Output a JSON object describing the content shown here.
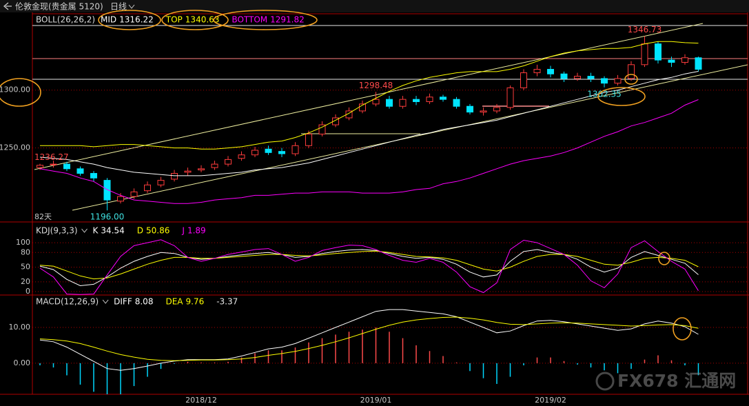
{
  "window": {
    "title": "伦敦金现(贵金属 5120)",
    "period": "日线"
  },
  "watermark": "FX678 汇通网",
  "chart_data": [
    {
      "type": "candlestick",
      "indicator": "BOLL(26,26,2)",
      "period_label": "82天",
      "categories": [
        null,
        null,
        null,
        null,
        null,
        null,
        null,
        null,
        null,
        null,
        null,
        null,
        "2018/12",
        null,
        null,
        null,
        null,
        null,
        null,
        null,
        null,
        null,
        null,
        null,
        null,
        "2019/01",
        null,
        null,
        null,
        null,
        null,
        null,
        null,
        null,
        null,
        null,
        null,
        null,
        "2019/02",
        null,
        null,
        null,
        null,
        null,
        null,
        null,
        null,
        null,
        null,
        null
      ],
      "open": [
        1233,
        1236,
        1236,
        1232,
        1228,
        1222,
        1204,
        1208,
        1213,
        1218,
        1223,
        1229,
        1231,
        1233,
        1236,
        1241,
        1244,
        1249,
        1247,
        1245,
        1252,
        1262,
        1270,
        1276,
        1282,
        1288,
        1292,
        1286,
        1292,
        1290,
        1294,
        1292,
        1286,
        1281,
        1282,
        1285,
        1302,
        1315,
        1318,
        1314,
        1310,
        1312,
        1310,
        1306,
        1310,
        1322,
        1340,
        1326,
        1324,
        1328
      ],
      "high": [
        1236.27,
        1239,
        1238,
        1234,
        1230,
        1224,
        1211,
        1215,
        1221,
        1225,
        1231,
        1233,
        1235,
        1239,
        1243,
        1247,
        1251,
        1252,
        1250,
        1255,
        1265,
        1273,
        1279,
        1285,
        1291,
        1298.48,
        1295,
        1295,
        1295,
        1297,
        1296,
        1294,
        1288,
        1285,
        1288,
        1304,
        1318,
        1322,
        1321,
        1316,
        1315,
        1315,
        1312,
        1313,
        1325,
        1346.73,
        1342,
        1329,
        1331,
        1329
      ],
      "low": [
        1231,
        1233,
        1230,
        1226,
        1221,
        1196,
        1202,
        1206,
        1211,
        1216,
        1221,
        1226,
        1229,
        1231,
        1234,
        1239,
        1242,
        1244,
        1242,
        1243,
        1250,
        1260,
        1268,
        1274,
        1280,
        1286,
        1284,
        1284,
        1287,
        1288,
        1290,
        1284,
        1279,
        1278,
        1280,
        1283,
        1300,
        1312,
        1311,
        1307,
        1308,
        1307,
        1302.35,
        1304,
        1308,
        1320,
        1323,
        1320,
        1322,
        1316
      ],
      "close": [
        1235,
        1236,
        1232,
        1228,
        1224,
        1205,
        1208,
        1212,
        1218,
        1222,
        1228,
        1230,
        1232,
        1236,
        1240,
        1244,
        1248,
        1246,
        1245,
        1252,
        1262,
        1270,
        1276,
        1282,
        1288,
        1292,
        1286,
        1292,
        1290,
        1294,
        1292,
        1286,
        1281,
        1282,
        1285,
        1302,
        1315,
        1318,
        1314,
        1310,
        1312,
        1310,
        1306,
        1310,
        1322,
        1340,
        1326,
        1324,
        1328,
        1318
      ],
      "up_color": "#ff3c3c",
      "down_color": "#00e4ff",
      "series": [
        {
          "name": "MID",
          "color": "#ffffff",
          "values": [
            1242,
            1241,
            1240,
            1238,
            1236,
            1233,
            1231,
            1229,
            1228,
            1227,
            1226,
            1226,
            1226,
            1227,
            1228,
            1229,
            1231,
            1232,
            1233,
            1235,
            1237,
            1240,
            1243,
            1246,
            1249,
            1252,
            1255,
            1258,
            1261,
            1263,
            1266,
            1268,
            1270,
            1272,
            1274,
            1277,
            1280,
            1283,
            1286,
            1289,
            1292,
            1295,
            1298,
            1300,
            1303,
            1306,
            1309,
            1311,
            1314,
            1316.22
          ]
        },
        {
          "name": "TOP",
          "color": "#ffff00",
          "values": [
            1252,
            1252,
            1252,
            1252,
            1251,
            1252,
            1253,
            1253,
            1252,
            1251,
            1250,
            1250,
            1249,
            1249,
            1250,
            1251,
            1253,
            1255,
            1256,
            1259,
            1263,
            1268,
            1274,
            1280,
            1287,
            1293,
            1299,
            1304,
            1308,
            1311,
            1313,
            1315,
            1316,
            1316,
            1316,
            1318,
            1321,
            1325,
            1329,
            1332,
            1334,
            1335,
            1336,
            1336,
            1337,
            1340,
            1342,
            1342,
            1341,
            1340.63
          ]
        },
        {
          "name": "BOTTOM",
          "color": "#ff00ff",
          "values": [
            1232,
            1230,
            1228,
            1224,
            1221,
            1214,
            1209,
            1205,
            1204,
            1203,
            1202,
            1202,
            1203,
            1205,
            1206,
            1207,
            1209,
            1209,
            1210,
            1211,
            1211,
            1212,
            1212,
            1212,
            1211,
            1211,
            1211,
            1212,
            1214,
            1215,
            1219,
            1221,
            1224,
            1228,
            1232,
            1236,
            1239,
            1241,
            1243,
            1246,
            1250,
            1255,
            1260,
            1264,
            1269,
            1272,
            1276,
            1280,
            1287,
            1291.82
          ]
        }
      ],
      "annotations": [
        1236.27,
        {
          "value": 1196,
          "label": "1196.00"
        },
        1298.48,
        1302.35,
        1346.73
      ],
      "ylim": [
        1186,
        1366
      ],
      "yticks": [
        {
          "value": 1300,
          "label": "1300.00"
        },
        {
          "value": 1250,
          "label": "1250.00"
        }
      ],
      "grid": true
    },
    {
      "type": "line",
      "indicator": "KDJ(9,3,3)",
      "series": [
        {
          "name": "K",
          "color": "#ffffff",
          "values": [
            52,
            45,
            25,
            12,
            15,
            30,
            48,
            62,
            72,
            80,
            78,
            70,
            66,
            68,
            72,
            75,
            78,
            80,
            76,
            70,
            72,
            78,
            82,
            85,
            86,
            84,
            78,
            72,
            68,
            70,
            66,
            56,
            40,
            30,
            34,
            62,
            82,
            86,
            80,
            76,
            66,
            50,
            40,
            48,
            70,
            82,
            74,
            66,
            58,
            34.54
          ]
        },
        {
          "name": "D",
          "color": "#ffff00",
          "values": [
            54,
            52,
            42,
            32,
            26,
            28,
            36,
            46,
            56,
            64,
            70,
            70,
            68,
            68,
            70,
            72,
            74,
            76,
            76,
            74,
            73,
            75,
            78,
            80,
            82,
            83,
            80,
            76,
            72,
            71,
            69,
            64,
            55,
            46,
            42,
            50,
            62,
            72,
            76,
            76,
            72,
            64,
            56,
            54,
            60,
            68,
            70,
            68,
            64,
            50.86
          ]
        },
        {
          "name": "J",
          "color": "#ff00ff",
          "values": [
            48,
            30,
            -5,
            -6,
            -5,
            34,
            72,
            94,
            100,
            106,
            94,
            70,
            62,
            68,
            76,
            81,
            86,
            88,
            76,
            62,
            70,
            84,
            90,
            95,
            94,
            86,
            74,
            64,
            60,
            68,
            60,
            40,
            10,
            -2,
            18,
            86,
            105,
            100,
            88,
            76,
            54,
            22,
            8,
            36,
            90,
            104,
            82,
            62,
            46,
            1.89
          ]
        }
      ],
      "ylim": [
        -7,
        110
      ],
      "yticks": [
        100,
        80,
        50,
        20,
        0
      ],
      "grid": true
    },
    {
      "type": "macd",
      "indicator": "MACD(12,26,9)",
      "series": [
        {
          "name": "DIFF",
          "color": "#ffffff",
          "values": [
            6.5,
            6.0,
            4.5,
            2.5,
            0.5,
            -1.5,
            -2.0,
            -1.5,
            -0.8,
            0.0,
            0.6,
            1.0,
            1.0,
            1.0,
            1.2,
            2.0,
            3.0,
            4.0,
            4.5,
            5.5,
            7.0,
            8.5,
            10.0,
            11.5,
            13.0,
            14.5,
            15.0,
            15.0,
            14.6,
            14.2,
            13.8,
            13.0,
            11.5,
            10.0,
            8.5,
            9.0,
            10.5,
            11.8,
            12.0,
            11.6,
            11.0,
            10.4,
            9.8,
            9.2,
            9.6,
            11.0,
            11.8,
            11.2,
            10.2,
            8.08
          ]
        },
        {
          "name": "DEA",
          "color": "#ffff00",
          "values": [
            6.8,
            6.6,
            6.2,
            5.5,
            4.5,
            3.4,
            2.4,
            1.7,
            1.1,
            0.8,
            0.7,
            0.8,
            0.9,
            0.9,
            1.0,
            1.2,
            1.6,
            2.2,
            2.7,
            3.3,
            4.1,
            5.0,
            6.0,
            7.1,
            8.3,
            9.5,
            10.6,
            11.5,
            12.1,
            12.5,
            12.8,
            12.9,
            12.6,
            12.1,
            11.4,
            10.9,
            10.8,
            11.0,
            11.2,
            11.3,
            11.2,
            11.0,
            10.8,
            10.6,
            10.4,
            10.5,
            10.7,
            10.8,
            10.5,
            9.76
          ]
        },
        {
          "kind": "bar",
          "color": "#ff4a4a",
          "negative_color": "#00d8ff",
          "values": [
            -0.6,
            -1.2,
            -3.4,
            -6.0,
            -8.0,
            -9.8,
            -8.8,
            -6.4,
            -3.8,
            -1.6,
            -0.2,
            0.4,
            0.2,
            0.2,
            0.4,
            1.6,
            2.8,
            3.6,
            3.6,
            4.4,
            5.8,
            7.0,
            8.0,
            8.8,
            9.4,
            10.0,
            8.8,
            7.0,
            5.0,
            3.4,
            2.0,
            0.2,
            -2.2,
            -4.2,
            -5.8,
            -3.8,
            -0.6,
            1.6,
            1.6,
            0.6,
            -0.4,
            -1.2,
            -2.0,
            -2.8,
            -1.6,
            1.0,
            2.2,
            0.8,
            -0.6,
            -3.37
          ]
        }
      ],
      "ylim": [
        -8.7,
        18.3
      ],
      "yticks": [
        {
          "value": 10,
          "label": "10.00"
        },
        {
          "value": 0,
          "label": "0.00"
        }
      ],
      "grid": true
    }
  ]
}
